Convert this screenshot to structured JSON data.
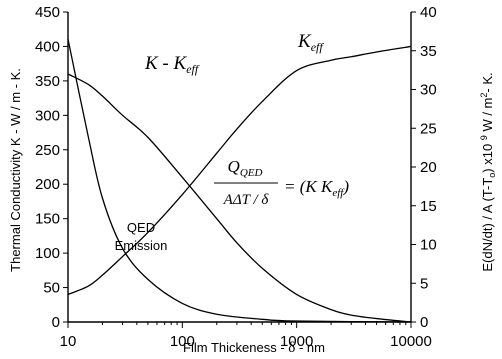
{
  "chart_data": {
    "type": "line",
    "x_scale": "log",
    "xlabel_text": "Film Thickeness - ",
    "xlabel_symbol": "δ",
    "xlabel_unit": " - nm",
    "ylabel_left": "Thermal Conductivity  K - W / m - K.",
    "ylabel_right": "E(dN/dt) / A  (T-T",
    "ylabel_right_sub": "o",
    "ylabel_right_end": ") x10 ",
    "ylabel_right_exp": "9",
    "ylabel_right_tail": " W / m",
    "ylabel_right_sup2": "2",
    "ylabel_right_last": "- K.",
    "xlim": [
      10,
      10000
    ],
    "ylim_left": [
      0,
      450
    ],
    "ylim_right": [
      0,
      40
    ],
    "x_ticks": [
      10,
      100,
      1000,
      10000
    ],
    "x_tick_labels": [
      "10",
      "100",
      "1000",
      "10000"
    ],
    "y_left_ticks": [
      0,
      50,
      100,
      150,
      200,
      250,
      300,
      350,
      400,
      450
    ],
    "y_left_tick_labels": [
      "0",
      "50",
      "100",
      "150",
      "200",
      "250",
      "300",
      "350",
      "400",
      "450"
    ],
    "y_right_ticks": [
      0,
      5,
      10,
      15,
      20,
      25,
      30,
      35,
      40
    ],
    "y_right_tick_labels": [
      "0",
      "5",
      "10",
      "15",
      "20",
      "25",
      "30",
      "35",
      "40"
    ],
    "series": [
      {
        "name": "K_eff",
        "axis": "left",
        "x": [
          10,
          15,
          20,
          30,
          50,
          100,
          200,
          300,
          500,
          1000,
          2000,
          3000,
          5000,
          10000
        ],
        "y": [
          40,
          52,
          68,
          95,
          130,
          185,
          245,
          280,
          320,
          365,
          380,
          385,
          392,
          400
        ]
      },
      {
        "name": "K - K_eff",
        "axis": "left",
        "x": [
          10,
          15,
          20,
          30,
          50,
          100,
          200,
          300,
          500,
          1000,
          2000,
          3000,
          5000,
          10000
        ],
        "y": [
          360,
          345,
          328,
          300,
          268,
          210,
          150,
          115,
          78,
          40,
          18,
          10,
          5,
          0
        ]
      },
      {
        "name": "QED Emission",
        "axis": "right",
        "x": [
          10,
          15,
          20,
          30,
          50,
          100,
          200,
          500,
          1000,
          10000
        ],
        "y": [
          36.5,
          24,
          16,
          9.5,
          5.5,
          2.4,
          1.0,
          0.35,
          0.12,
          0
        ]
      }
    ],
    "labels": {
      "keff_main": "K",
      "keff_sub": "eff",
      "kminus_main": "K - K",
      "kminus_sub": "eff",
      "qed_line1": "QED",
      "qed_line2": "Emission"
    },
    "equation": {
      "num_main": "Q",
      "num_sub": "QED",
      "den_main": "AΔT / δ",
      "rhs": "= (K    K",
      "rhs_sub": "eff",
      "rhs_close": ")"
    },
    "grid": false,
    "legend": "none"
  }
}
